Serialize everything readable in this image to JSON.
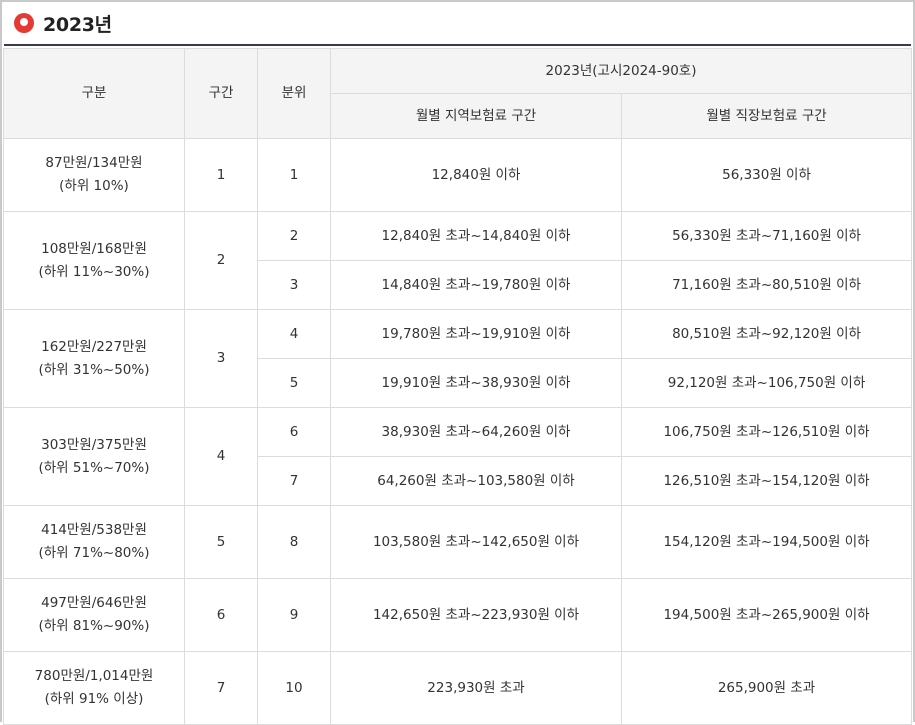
{
  "title": "2023년",
  "header": {
    "col_group": "구분",
    "col_section": "구간",
    "col_decile": "분위",
    "col_year": "2023년(고시2024-90호)",
    "col_regional": "월별 지역보험료 구간",
    "col_workplace": "월별 직장보험료 구간"
  },
  "rows": [
    {
      "group_amount": "87만원/134만원",
      "group_rank": "(하위 10%)",
      "section": "1",
      "deciles": [
        {
          "decile": "1",
          "regional": "12,840원 이하",
          "workplace": "56,330원 이하"
        }
      ]
    },
    {
      "group_amount": "108만원/168만원",
      "group_rank": "(하위 11%~30%)",
      "section": "2",
      "deciles": [
        {
          "decile": "2",
          "regional": "12,840원 초과~14,840원 이하",
          "workplace": "56,330원 초과~71,160원 이하"
        },
        {
          "decile": "3",
          "regional": "14,840원 초과~19,780원 이하",
          "workplace": "71,160원 초과~80,510원 이하"
        }
      ]
    },
    {
      "group_amount": "162만원/227만원",
      "group_rank": "(하위 31%~50%)",
      "section": "3",
      "deciles": [
        {
          "decile": "4",
          "regional": "19,780원 초과~19,910원 이하",
          "workplace": "80,510원 초과~92,120원 이하"
        },
        {
          "decile": "5",
          "regional": "19,910원 초과~38,930원 이하",
          "workplace": "92,120원 초과~106,750원 이하"
        }
      ]
    },
    {
      "group_amount": "303만원/375만원",
      "group_rank": "(하위 51%~70%)",
      "section": "4",
      "deciles": [
        {
          "decile": "6",
          "regional": "38,930원 초과~64,260원 이하",
          "workplace": "106,750원 초과~126,510원 이하"
        },
        {
          "decile": "7",
          "regional": "64,260원 초과~103,580원 이하",
          "workplace": "126,510원 초과~154,120원 이하"
        }
      ]
    },
    {
      "group_amount": "414만원/538만원",
      "group_rank": "(하위 71%~80%)",
      "section": "5",
      "deciles": [
        {
          "decile": "8",
          "regional": "103,580원 초과~142,650원 이하",
          "workplace": "154,120원 초과~194,500원 이하"
        }
      ]
    },
    {
      "group_amount": "497만원/646만원",
      "group_rank": "(하위 81%~90%)",
      "section": "6",
      "deciles": [
        {
          "decile": "9",
          "regional": "142,650원 초과~223,930원 이하",
          "workplace": "194,500원 초과~265,900원 이하"
        }
      ]
    },
    {
      "group_amount": "780만원/1,014만원",
      "group_rank": "(하위 91% 이상)",
      "section": "7",
      "deciles": [
        {
          "decile": "10",
          "regional": "223,930원 초과",
          "workplace": "265,900원 초과"
        }
      ]
    }
  ],
  "icon": "heart-bullet-icon",
  "accent_color": "#e53935"
}
